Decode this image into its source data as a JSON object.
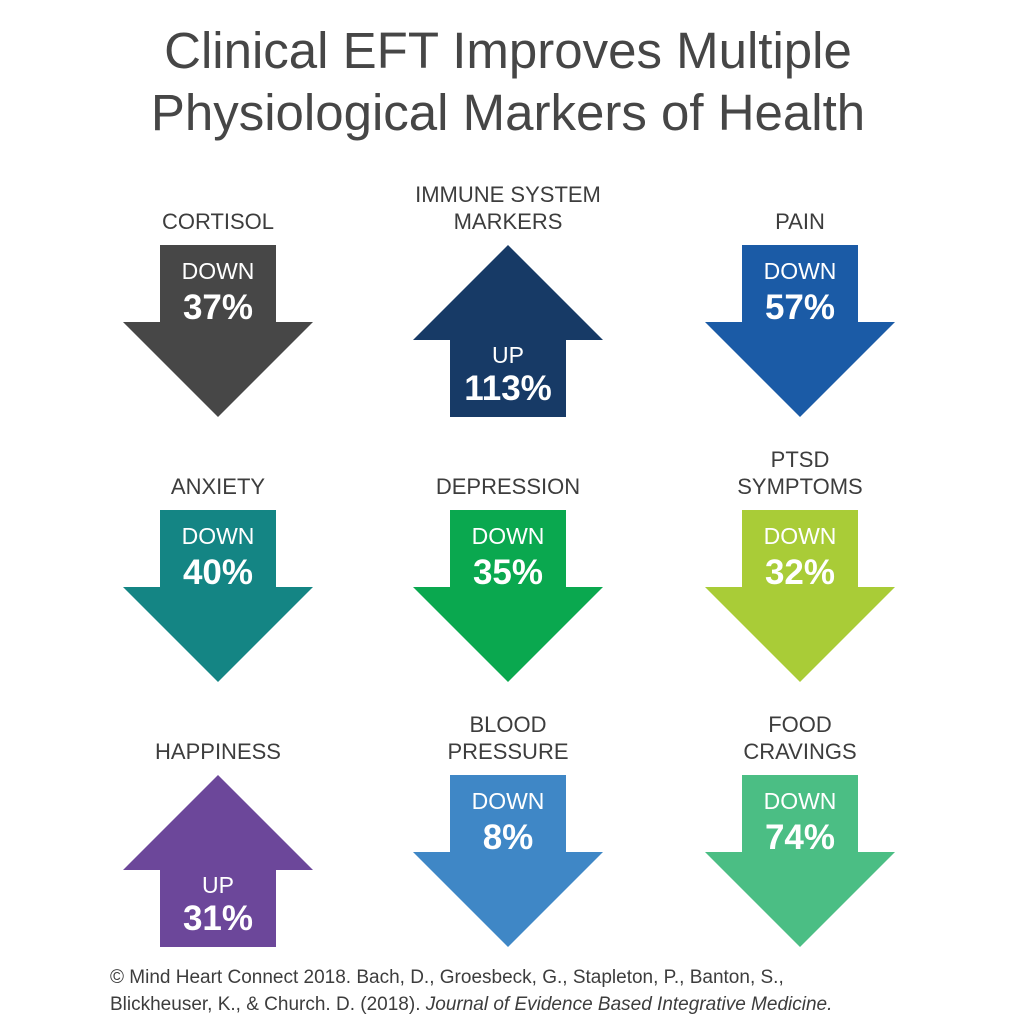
{
  "title": {
    "line1": "Clinical EFT Improves Multiple",
    "line2": "Physiological Markers of Health"
  },
  "chart_data": {
    "type": "arrow-infographic",
    "title": "Clinical EFT Improves Multiple Physiological Markers of Health",
    "unit": "%",
    "items": [
      {
        "label": [
          "CORTISOL"
        ],
        "direction": "DOWN",
        "value": 37,
        "display": "37%",
        "color": "#474747"
      },
      {
        "label": [
          "IMMUNE SYSTEM",
          "MARKERS"
        ],
        "direction": "UP",
        "value": 113,
        "display": "113%",
        "color": "#173a66"
      },
      {
        "label": [
          "PAIN"
        ],
        "direction": "DOWN",
        "value": 57,
        "display": "57%",
        "color": "#1b5ba6"
      },
      {
        "label": [
          "ANXIETY"
        ],
        "direction": "DOWN",
        "value": 40,
        "display": "40%",
        "color": "#148584"
      },
      {
        "label": [
          "DEPRESSION"
        ],
        "direction": "DOWN",
        "value": 35,
        "display": "35%",
        "color": "#0aa84f"
      },
      {
        "label": [
          "PTSD",
          "SYMPTOMS"
        ],
        "direction": "DOWN",
        "value": 32,
        "display": "32%",
        "color": "#a9cc37"
      },
      {
        "label": [
          "HAPPINESS"
        ],
        "direction": "UP",
        "value": 31,
        "display": "31%",
        "color": "#6c479a"
      },
      {
        "label": [
          "BLOOD",
          "PRESSURE"
        ],
        "direction": "DOWN",
        "value": 8,
        "display": "8%",
        "color": "#3f87c6"
      },
      {
        "label": [
          "FOOD",
          "CRAVINGS"
        ],
        "direction": "DOWN",
        "value": 74,
        "display": "74%",
        "color": "#4bbe84"
      }
    ]
  },
  "citation": {
    "line1": "© Mind Heart Connect 2018. Bach, D., Groesbeck, G., Stapleton, P., Banton, S.,",
    "line2_prefix": "Blickheuser, K., & Church. D. (2018). ",
    "journal": "Journal of Evidence Based Integrative Medicine."
  }
}
